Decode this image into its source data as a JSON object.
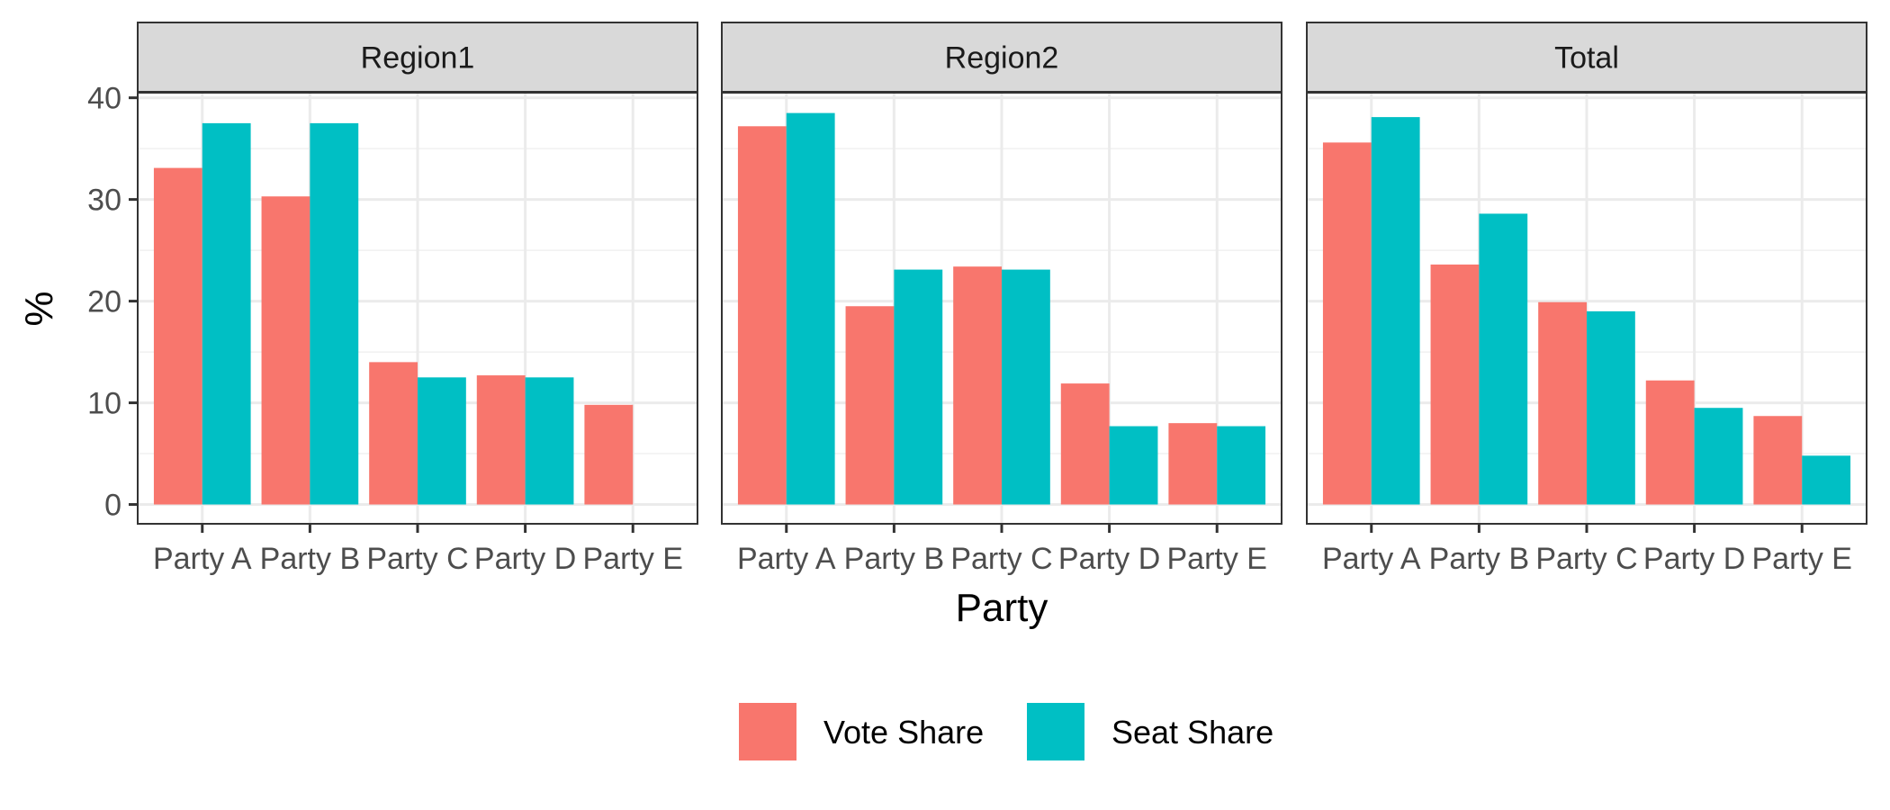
{
  "chart_data": {
    "type": "bar",
    "facets": [
      "Region1",
      "Region2",
      "Total"
    ],
    "categories": [
      "Party A",
      "Party B",
      "Party C",
      "Party D",
      "Party E"
    ],
    "series": [
      {
        "name": "Vote Share",
        "color": "#F8766D",
        "values": {
          "Region1": [
            33.1,
            30.3,
            14.0,
            12.7,
            9.8
          ],
          "Region2": [
            37.2,
            19.5,
            23.4,
            11.9,
            8.0
          ],
          "Total": [
            35.6,
            23.6,
            19.9,
            12.2,
            8.7
          ]
        }
      },
      {
        "name": "Seat Share",
        "color": "#00BFC4",
        "values": {
          "Region1": [
            37.5,
            37.5,
            12.5,
            12.5,
            0
          ],
          "Region2": [
            38.5,
            23.1,
            23.1,
            7.7,
            7.7
          ],
          "Total": [
            38.1,
            28.6,
            19.0,
            9.5,
            4.8
          ]
        }
      }
    ],
    "xlabel": "Party",
    "ylabel": "%",
    "ylim": [
      -1.9,
      40.5
    ],
    "yticks": [
      0,
      10,
      20,
      30,
      40
    ],
    "grid": true,
    "legend_position": "bottom"
  }
}
